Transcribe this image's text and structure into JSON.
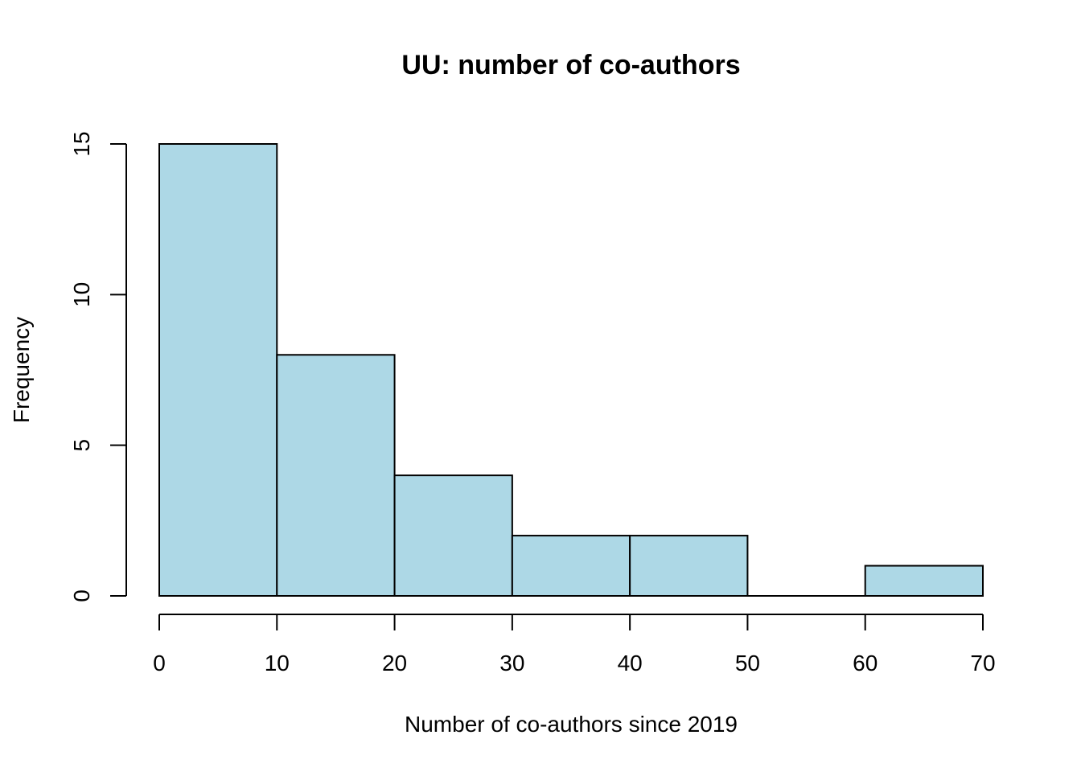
{
  "chart_data": {
    "type": "bar",
    "title": "UU: number of co-authors",
    "xlabel": "Number of co-authors since 2019",
    "ylabel": "Frequency",
    "bins": [
      {
        "from": 0,
        "to": 10,
        "count": 15
      },
      {
        "from": 10,
        "to": 20,
        "count": 8
      },
      {
        "from": 20,
        "to": 30,
        "count": 4
      },
      {
        "from": 30,
        "to": 40,
        "count": 2
      },
      {
        "from": 40,
        "to": 50,
        "count": 2
      },
      {
        "from": 50,
        "to": 60,
        "count": 0
      },
      {
        "from": 60,
        "to": 70,
        "count": 1
      }
    ],
    "xlim": [
      0,
      70
    ],
    "ylim": [
      0,
      15
    ],
    "x_ticks": [
      "0",
      "10",
      "20",
      "30",
      "40",
      "50",
      "60",
      "70"
    ],
    "y_ticks": [
      "0",
      "5",
      "10",
      "15"
    ],
    "bar_color": "#add8e6",
    "grid": false,
    "legend": "none"
  }
}
